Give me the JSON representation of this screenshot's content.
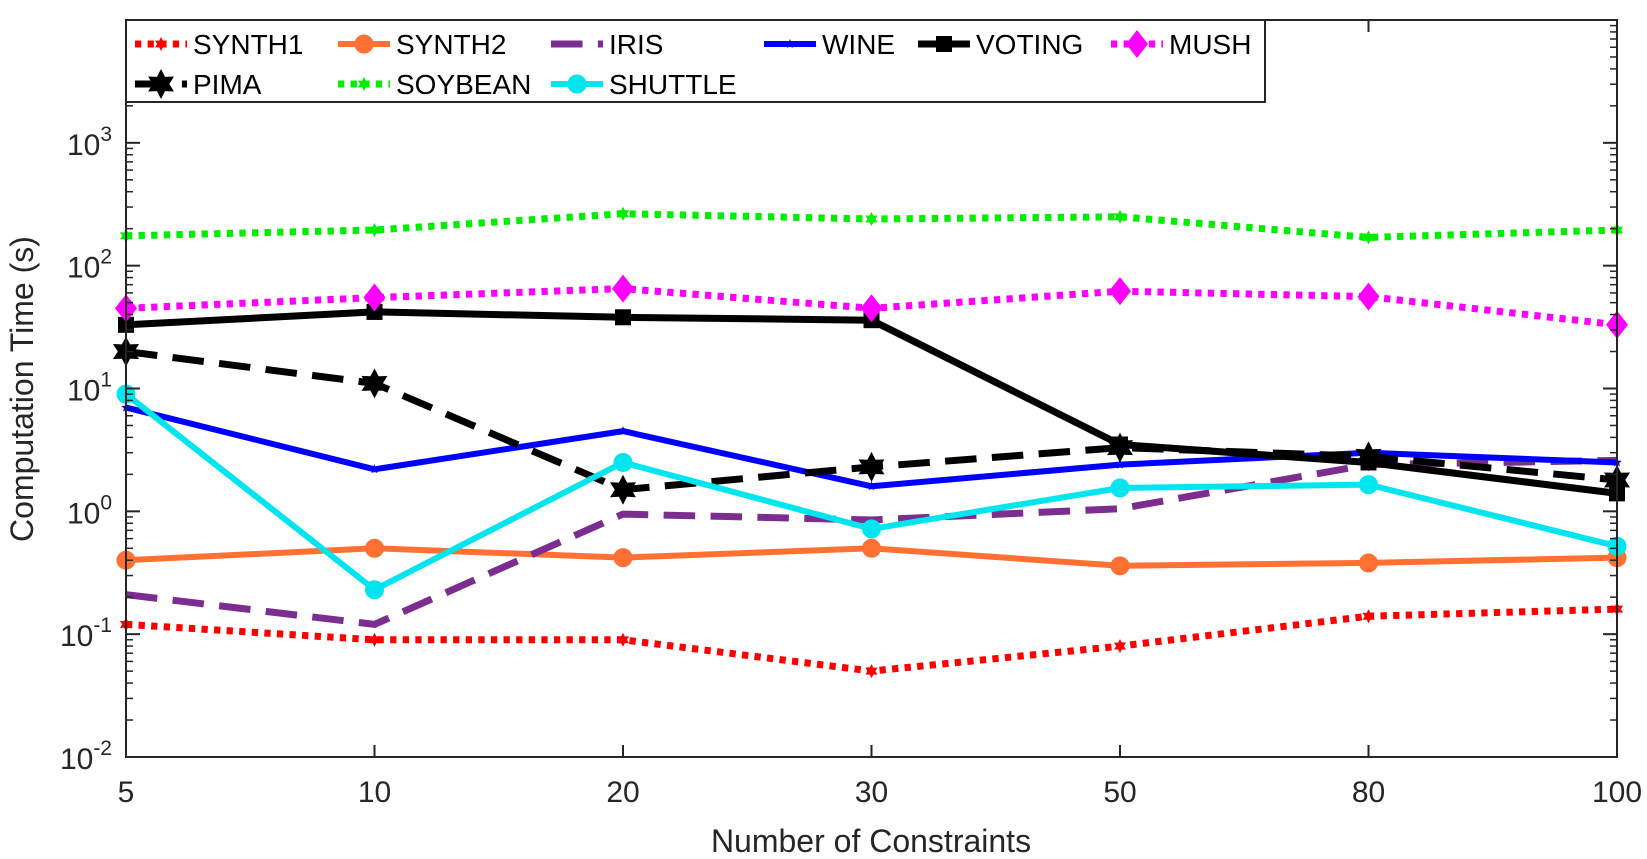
{
  "chart_data": {
    "type": "line",
    "xlabel": "Number of Constraints",
    "ylabel": "Computation Time (s)",
    "x": [
      "5",
      "10",
      "20",
      "30",
      "50",
      "80",
      "100"
    ],
    "y_scale": "log",
    "ylim": [
      0.01,
      10000
    ],
    "y_ticks": [
      {
        "base": "10",
        "exp": "-2"
      },
      {
        "base": "10",
        "exp": "-1"
      },
      {
        "base": "10",
        "exp": "0"
      },
      {
        "base": "10",
        "exp": "1"
      },
      {
        "base": "10",
        "exp": "2"
      },
      {
        "base": "10",
        "exp": "3"
      }
    ],
    "grid": false,
    "legend_position": "top-left",
    "series": [
      {
        "name": "SYNTH1",
        "color": "#ff0000",
        "style": "dotted",
        "marker": "hexagram-small",
        "values": [
          0.12,
          0.09,
          0.09,
          0.05,
          0.08,
          0.14,
          0.16
        ]
      },
      {
        "name": "SYNTH2",
        "color": "#ff7033",
        "style": "solid",
        "marker": "circle",
        "values": [
          0.4,
          0.5,
          0.42,
          0.5,
          0.36,
          0.38,
          0.42
        ]
      },
      {
        "name": "IRIS",
        "color": "#7b2e90",
        "style": "dashed",
        "marker": "none",
        "values": [
          0.21,
          0.12,
          0.95,
          0.85,
          1.05,
          2.4,
          2.6
        ]
      },
      {
        "name": "WINE",
        "color": "#0000ff",
        "style": "solid",
        "marker": "small-star",
        "values": [
          7.0,
          2.2,
          4.5,
          1.6,
          2.4,
          3.0,
          2.5
        ]
      },
      {
        "name": "VOTING",
        "color": "#000000",
        "style": "solid",
        "marker": "square",
        "values": [
          33,
          42,
          38,
          36,
          3.5,
          2.5,
          1.4
        ]
      },
      {
        "name": "MUSH",
        "color": "#ff00ff",
        "style": "dotted",
        "marker": "diamond",
        "values": [
          45,
          55,
          65,
          45,
          62,
          56,
          33
        ]
      },
      {
        "name": "PIMA",
        "color": "#000000",
        "style": "dashed",
        "marker": "hexagram",
        "values": [
          20,
          11,
          1.5,
          2.3,
          3.3,
          2.8,
          1.8
        ]
      },
      {
        "name": "SOYBEAN",
        "color": "#00ee00",
        "style": "dotted",
        "marker": "hexagram-small",
        "values": [
          175,
          195,
          265,
          240,
          250,
          170,
          195
        ]
      },
      {
        "name": "SHUTTLE",
        "color": "#00e5ee",
        "style": "solid",
        "marker": "circle",
        "values": [
          9.0,
          0.23,
          2.5,
          0.72,
          1.55,
          1.65,
          0.52
        ]
      }
    ]
  }
}
